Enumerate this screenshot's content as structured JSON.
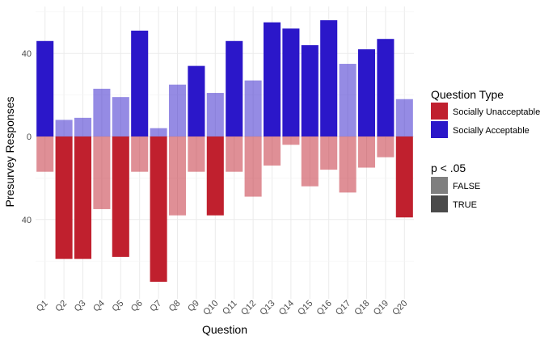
{
  "chart_data": {
    "type": "bar",
    "subtype": "diverging-stacked",
    "xlabel": "Question",
    "ylabel": "Presurvey Responses",
    "categories": [
      "Q1",
      "Q2",
      "Q3",
      "Q4",
      "Q5",
      "Q6",
      "Q7",
      "Q8",
      "Q9",
      "Q10",
      "Q11",
      "Q12",
      "Q13",
      "Q14",
      "Q15",
      "Q16",
      "Q17",
      "Q18",
      "Q19",
      "Q20"
    ],
    "series": [
      {
        "name": "Socially Acceptable",
        "color": "#2b17c9",
        "direction": "up",
        "values": [
          46,
          8,
          9,
          23,
          19,
          51,
          4,
          25,
          34,
          21,
          46,
          27,
          55,
          52,
          44,
          56,
          35,
          42,
          47,
          18
        ],
        "significant": [
          true,
          false,
          false,
          false,
          false,
          true,
          false,
          false,
          true,
          false,
          true,
          false,
          true,
          true,
          true,
          true,
          false,
          true,
          true,
          false
        ]
      },
      {
        "name": "Socially Unacceptable",
        "color": "#c0202e",
        "direction": "down",
        "values": [
          17,
          59,
          59,
          35,
          58,
          17,
          70,
          38,
          17,
          38,
          17,
          29,
          14,
          4,
          24,
          16,
          27,
          15,
          10,
          39
        ],
        "significant": [
          false,
          true,
          true,
          false,
          true,
          false,
          true,
          false,
          false,
          true,
          false,
          false,
          false,
          false,
          false,
          false,
          false,
          false,
          false,
          true
        ]
      }
    ],
    "yticks": [
      {
        "value": 40,
        "label": "40"
      },
      {
        "value": 0,
        "label": "0"
      },
      {
        "value": -40,
        "label": "40"
      }
    ],
    "ylim": [
      -78,
      64
    ],
    "grid": true,
    "legend": {
      "placement": "right",
      "fill_title": "Question Type",
      "fill_items": [
        {
          "label": "Socially Unacceptable",
          "color": "#c0202e"
        },
        {
          "label": "Socially Acceptable",
          "color": "#2b17c9"
        }
      ],
      "alpha_title": "p < .05",
      "alpha_items": [
        {
          "label": "FALSE",
          "color": "#7f7f7f"
        },
        {
          "label": "TRUE",
          "color": "#4a4a4a"
        }
      ]
    },
    "faded_opacity": 0.5
  }
}
